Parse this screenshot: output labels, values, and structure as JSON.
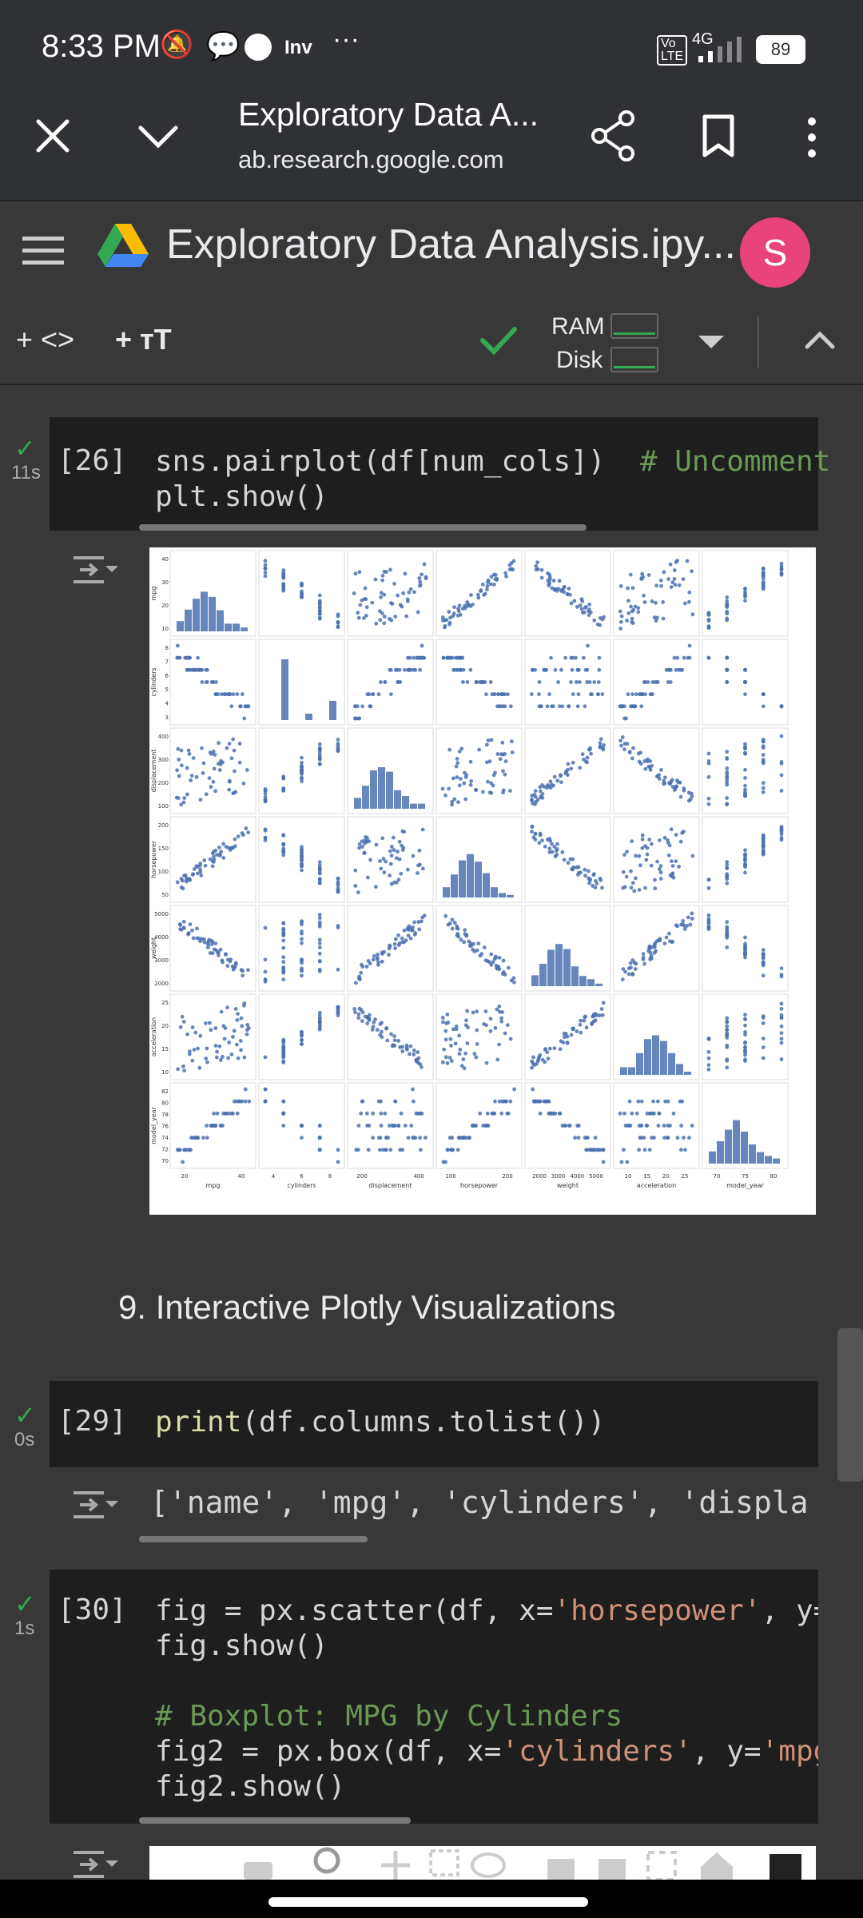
{
  "status_bar": {
    "time": "8:33 PM",
    "network": "4G",
    "volte": "Vo LTE",
    "battery": "89"
  },
  "tab_bar": {
    "title": "Exploratory Data A...",
    "url": "ab.research.google.com"
  },
  "colab_header": {
    "notebook_title": "Exploratory Data Analysis.ipy...",
    "avatar_initial": "S"
  },
  "toolbar": {
    "add_code": "+ <>",
    "add_text": "+ ᴛT",
    "ram_label": "RAM",
    "disk_label": "Disk"
  },
  "cells": {
    "cell26": {
      "prompt": "[26]",
      "duration": "11s",
      "line1": "sns.pairplot(df[num_cols])",
      "line1_comment": "# Uncomment",
      "line2": "plt.show()"
    },
    "heading": "9. Interactive Plotly Visualizations",
    "cell29": {
      "prompt": "[29]",
      "duration": "0s",
      "fn": "print",
      "rest": "(df.columns.tolist())",
      "output": "['name', 'mpg', 'cylinders', 'displa"
    },
    "cell30": {
      "prompt": "[30]",
      "duration": "1s",
      "line1a": "fig = px.scatter(df, x=",
      "line1b": "'horsepower'",
      "line1c": ", y=",
      "line2": "fig.show()",
      "line3": "# Boxplot: MPG by Cylinders",
      "line4a": "fig2 = px.box(df, x=",
      "line4b": "'cylinders'",
      "line4c": ", y=",
      "line4d": "'mpg",
      "line5": "fig2.show()"
    }
  },
  "pairplot": {
    "variables": [
      "mpg",
      "cylinders",
      "displacement",
      "horsepower",
      "weight",
      "acceleration",
      "model_year"
    ],
    "x_ticks": [
      [
        "20",
        "40"
      ],
      [
        "4",
        "6",
        "8"
      ],
      [
        "200",
        "400"
      ],
      [
        "100",
        "200"
      ],
      [
        "2000",
        "3000",
        "4000",
        "5000"
      ],
      [
        "10",
        "15",
        "20",
        "25"
      ],
      [
        "70",
        "75",
        "80"
      ]
    ],
    "y_ticks": [
      [
        "40",
        "30",
        "20",
        "10"
      ],
      [
        "8",
        "7",
        "6",
        "5",
        "4",
        "3"
      ],
      [
        "400",
        "300",
        "200",
        "100"
      ],
      [
        "200",
        "150",
        "100",
        "50"
      ],
      [
        "5000",
        "4000",
        "3000",
        "2000"
      ],
      [
        "25",
        "20",
        "15",
        "10"
      ],
      [
        "82",
        "80",
        "78",
        "76",
        "74",
        "72",
        "70"
      ]
    ],
    "marker_color": "#4c72b0"
  },
  "colors": {
    "accent_green": "#34a853",
    "avatar": "#e8437b",
    "code_bg": "#1e1e1e"
  }
}
